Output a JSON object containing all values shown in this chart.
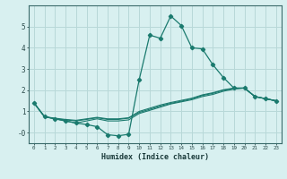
{
  "x": [
    0,
    1,
    2,
    3,
    4,
    5,
    6,
    7,
    8,
    9,
    10,
    11,
    12,
    13,
    14,
    15,
    16,
    17,
    18,
    19,
    20,
    21,
    22,
    23
  ],
  "line1": [
    1.4,
    0.75,
    0.65,
    0.55,
    0.45,
    0.38,
    0.28,
    -0.1,
    -0.15,
    -0.08,
    2.5,
    4.6,
    4.45,
    5.5,
    5.05,
    4.0,
    3.95,
    3.2,
    2.6,
    2.1,
    2.1,
    1.7,
    1.6,
    1.5
  ],
  "line2": [
    1.4,
    0.75,
    0.65,
    0.55,
    0.45,
    0.55,
    0.65,
    0.55,
    0.55,
    0.6,
    0.9,
    1.05,
    1.2,
    1.35,
    1.45,
    1.55,
    1.7,
    1.8,
    1.95,
    2.05,
    2.1,
    1.7,
    1.6,
    1.5
  ],
  "line3": [
    1.4,
    0.75,
    0.65,
    0.6,
    0.55,
    0.62,
    0.7,
    0.62,
    0.62,
    0.68,
    0.95,
    1.1,
    1.25,
    1.38,
    1.48,
    1.6,
    1.75,
    1.85,
    2.0,
    2.08,
    2.1,
    1.7,
    1.6,
    1.5
  ],
  "line4": [
    1.4,
    0.75,
    0.68,
    0.62,
    0.58,
    0.65,
    0.72,
    0.65,
    0.65,
    0.7,
    1.0,
    1.15,
    1.3,
    1.42,
    1.52,
    1.62,
    1.78,
    1.88,
    2.02,
    2.1,
    2.1,
    1.7,
    1.6,
    1.5
  ],
  "color": "#1a7a6e",
  "bg_color": "#d8f0f0",
  "grid_color": "#b8d8d8",
  "xlabel": "Humidex (Indice chaleur)",
  "ylim": [
    -0.5,
    6.0
  ],
  "xlim": [
    -0.5,
    23.5
  ],
  "yticks": [
    0,
    1,
    2,
    3,
    4,
    5
  ],
  "ytick_labels": [
    "-0",
    "1",
    "2",
    "3",
    "4",
    "5"
  ],
  "xticks": [
    0,
    1,
    2,
    3,
    4,
    5,
    6,
    7,
    8,
    9,
    10,
    11,
    12,
    13,
    14,
    15,
    16,
    17,
    18,
    19,
    20,
    21,
    22,
    23
  ]
}
